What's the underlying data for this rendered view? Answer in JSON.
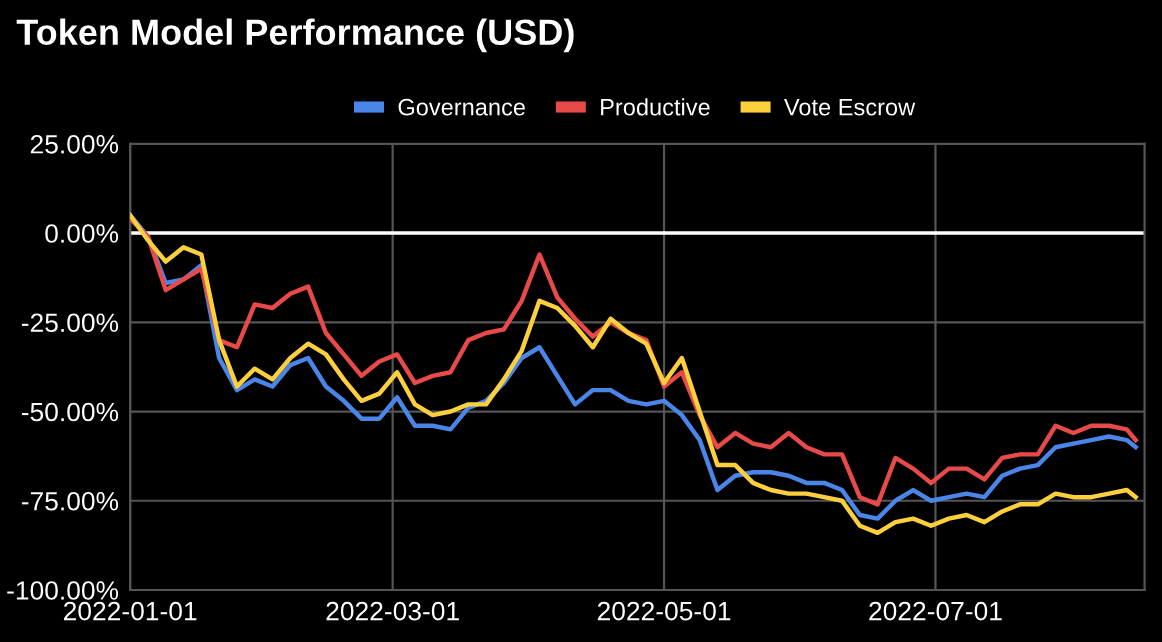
{
  "chart_data": {
    "type": "line",
    "title": "Token Model Performance (USD)",
    "x": [
      "2022-01-01",
      "2022-01-05",
      "2022-01-09",
      "2022-01-13",
      "2022-01-17",
      "2022-01-21",
      "2022-01-25",
      "2022-01-29",
      "2022-02-02",
      "2022-02-06",
      "2022-02-10",
      "2022-02-14",
      "2022-02-18",
      "2022-02-22",
      "2022-02-26",
      "2022-03-02",
      "2022-03-06",
      "2022-03-10",
      "2022-03-14",
      "2022-03-18",
      "2022-03-22",
      "2022-03-26",
      "2022-03-30",
      "2022-04-03",
      "2022-04-07",
      "2022-04-11",
      "2022-04-15",
      "2022-04-19",
      "2022-04-23",
      "2022-04-27",
      "2022-05-01",
      "2022-05-05",
      "2022-05-09",
      "2022-05-13",
      "2022-05-17",
      "2022-05-21",
      "2022-05-25",
      "2022-05-29",
      "2022-06-02",
      "2022-06-06",
      "2022-06-10",
      "2022-06-14",
      "2022-06-18",
      "2022-06-22",
      "2022-06-26",
      "2022-06-30",
      "2022-07-04",
      "2022-07-08",
      "2022-07-12",
      "2022-07-16",
      "2022-07-20",
      "2022-07-24",
      "2022-07-28",
      "2022-08-01",
      "2022-08-05",
      "2022-08-09",
      "2022-08-13",
      "2022-08-15"
    ],
    "series": [
      {
        "name": "Governance",
        "color": "#4a86e8",
        "values": [
          5,
          -1,
          -14,
          -13,
          -9,
          -35,
          -44,
          -41,
          -43,
          -37,
          -35,
          -43,
          -47,
          -52,
          -52,
          -46,
          -54,
          -54,
          -55,
          -49,
          -47,
          -42,
          -35,
          -32,
          -40,
          -48,
          -44,
          -44,
          -47,
          -48,
          -47,
          -51,
          -58,
          -72,
          -68,
          -67,
          -67,
          -68,
          -70,
          -70,
          -72,
          -79,
          -80,
          -75,
          -72,
          -75,
          -74,
          -73,
          -74,
          -68,
          -66,
          -65,
          -60,
          -59,
          -58,
          -57,
          -58,
          -60
        ]
      },
      {
        "name": "Productive",
        "color": "#e84a4a",
        "values": [
          4,
          -1,
          -16,
          -13,
          -10,
          -30,
          -32,
          -20,
          -21,
          -17,
          -15,
          -28,
          -34,
          -40,
          -36,
          -34,
          -42,
          -40,
          -39,
          -30,
          -28,
          -27,
          -19,
          -6,
          -18,
          -24,
          -29,
          -25,
          -28,
          -30,
          -43,
          -39,
          -51,
          -60,
          -56,
          -59,
          -60,
          -56,
          -60,
          -62,
          -62,
          -74,
          -76,
          -63,
          -66,
          -70,
          -66,
          -66,
          -69,
          -63,
          -62,
          -62,
          -54,
          -56,
          -54,
          -54,
          -55,
          -58
        ]
      },
      {
        "name": "Vote Escrow",
        "color": "#fcd03c",
        "values": [
          5,
          -2,
          -8,
          -4,
          -6,
          -30,
          -43,
          -38,
          -41,
          -35,
          -31,
          -34,
          -41,
          -47,
          -45,
          -39,
          -48,
          -51,
          -50,
          -48,
          -48,
          -41,
          -33,
          -19,
          -21,
          -26,
          -32,
          -24,
          -28,
          -31,
          -42,
          -35,
          -50,
          -65,
          -65,
          -70,
          -72,
          -73,
          -73,
          -74,
          -75,
          -82,
          -84,
          -81,
          -80,
          -82,
          -80,
          -79,
          -81,
          -78,
          -76,
          -76,
          -73,
          -74,
          -74,
          -73,
          -72,
          -74
        ]
      }
    ],
    "xlim": [
      "2022-01-01",
      "2022-08-17"
    ],
    "xticks": [
      {
        "value": "2022-01-01",
        "label": "2022-01-01"
      },
      {
        "value": "2022-03-01",
        "label": "2022-03-01"
      },
      {
        "value": "2022-05-01",
        "label": "2022-05-01"
      },
      {
        "value": "2022-07-01",
        "label": "2022-07-01"
      }
    ],
    "ylim": [
      -100,
      25
    ],
    "yticks": [
      {
        "value": 25,
        "label": "25.00%"
      },
      {
        "value": 0,
        "label": "0.00%"
      },
      {
        "value": -25,
        "label": "-25.00%"
      },
      {
        "value": -50,
        "label": "-50.00%"
      },
      {
        "value": -75,
        "label": "-75.00%"
      },
      {
        "value": -100,
        "label": "-100.00%"
      }
    ],
    "ref_lines": [
      {
        "axis": "y",
        "value": 0,
        "color": "#ffffff"
      }
    ],
    "grid": true,
    "legend": "top",
    "marker": "none",
    "line_style": "solid"
  }
}
